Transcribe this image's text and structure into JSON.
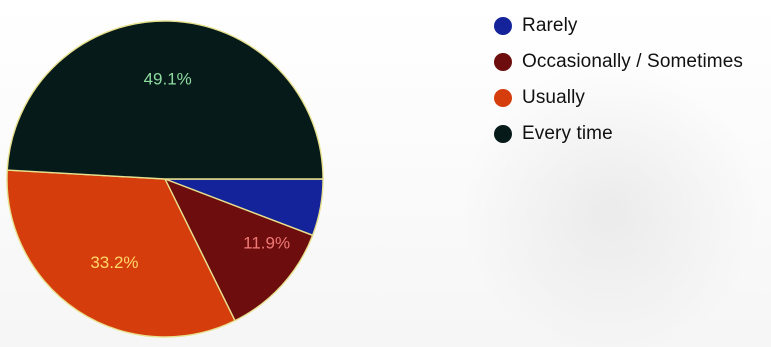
{
  "chart_data": {
    "type": "pie",
    "categories": [
      "Rarely",
      "Occasionally / Sometimes",
      "Usually",
      "Every time"
    ],
    "values": [
      5.8,
      11.9,
      33.2,
      49.1
    ],
    "labels": [
      "",
      "11.9%",
      "33.2%",
      "49.1%"
    ],
    "colors": [
      "#14239a",
      "#6e0d0d",
      "#d63d0c",
      "#061a1a"
    ],
    "label_colors": [
      "#ffffff",
      "#f07a78",
      "#ffd86a",
      "#8edb9f"
    ],
    "legend_position": "right"
  }
}
